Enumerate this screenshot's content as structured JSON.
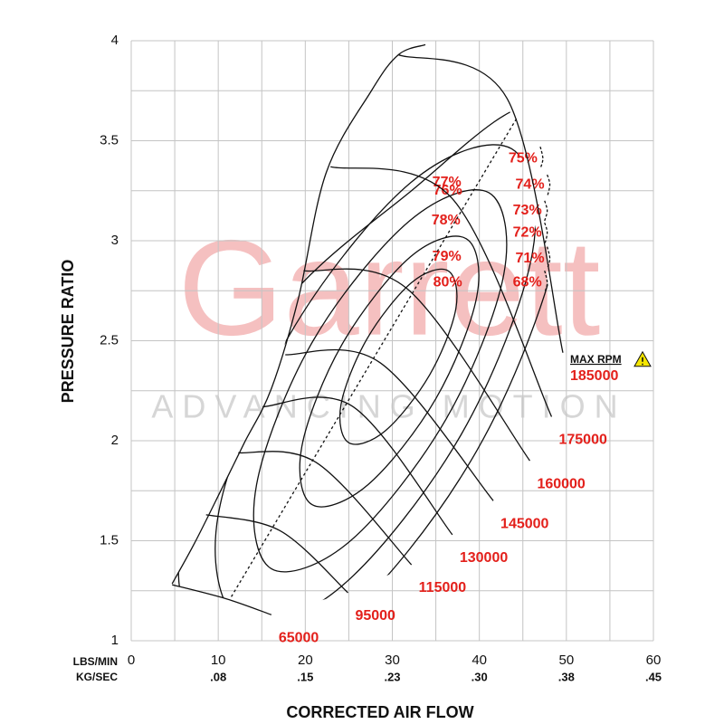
{
  "chart_data": {
    "type": "compressor_map",
    "x_label": "CORRECTED AIR FLOW",
    "y_label": "PRESSURE RATIO",
    "x_unit": "LBS/MIN",
    "x2_unit": "KG/SEC",
    "watermark": {
      "brand": "Garrett",
      "tagline": "ADVANCING MOTION"
    },
    "max_rpm_label": "MAX RPM",
    "xlim": [
      0,
      60
    ],
    "ylim": [
      1,
      4
    ],
    "xticks": [
      0,
      10,
      20,
      30,
      40,
      50,
      60
    ],
    "x2ticks": [
      {
        "value": 10,
        "label": ".08"
      },
      {
        "value": 20,
        "label": ".15"
      },
      {
        "value": 30,
        "label": ".23"
      },
      {
        "value": 40,
        "label": ".30"
      },
      {
        "value": 50,
        "label": ".38"
      },
      {
        "value": 60,
        "label": ".45"
      }
    ],
    "yticks": [
      1,
      1.5,
      2,
      2.5,
      3,
      3.5,
      4
    ],
    "xgrid": [
      5,
      15,
      25,
      35,
      45,
      55
    ],
    "ygrid": [
      1.25,
      1.75,
      2.25,
      2.75,
      3.25,
      3.75
    ],
    "line_color": "#111111",
    "label_color": "#e3201b",
    "surge_line": {
      "x": [
        4.7,
        7.3,
        10.4,
        13,
        16.1,
        19.2,
        22.4,
        27.6,
        30.7,
        33.8
      ],
      "y": [
        1.285,
        1.49,
        1.76,
        1.99,
        2.26,
        2.71,
        3.34,
        3.75,
        3.93,
        3.98
      ]
    },
    "peak_line": {
      "x": [
        11.5,
        44.4
      ],
      "y": [
        1.22,
        3.62
      ]
    },
    "speed_lines": [
      {
        "name": "65000",
        "x": [
          4.7,
          10.9,
          16.1
        ],
        "y": [
          1.28,
          1.21,
          1.13
        ]
      },
      {
        "name": "95000",
        "x": [
          8.6,
          17.1,
          24.9
        ],
        "y": [
          1.63,
          1.55,
          1.24
        ]
      },
      {
        "name": "115000",
        "x": [
          12.3,
          21.3,
          32.2
        ],
        "y": [
          1.94,
          1.89,
          1.38
        ]
      },
      {
        "name": "130000",
        "x": [
          15.1,
          25.5,
          36.9
        ],
        "y": [
          2.17,
          2.17,
          1.53
        ]
      },
      {
        "name": "145000",
        "x": [
          17.7,
          28.6,
          41.6
        ],
        "y": [
          2.43,
          2.39,
          1.7
        ]
      },
      {
        "name": "160000",
        "x": [
          19.8,
          31.7,
          45.8
        ],
        "y": [
          2.85,
          2.76,
          1.9
        ]
      },
      {
        "name": "175000",
        "x": [
          22.9,
          36.9,
          48.3
        ],
        "y": [
          3.37,
          3.21,
          2.12
        ]
      },
      {
        "name": "185000",
        "x": [
          30.7,
          43.2,
          49.6
        ],
        "y": [
          3.93,
          3.71,
          2.44
        ]
      }
    ],
    "islands": [
      {
        "name": "80%",
        "x": [
          36.4,
          37.3,
          34.3,
          29.2,
          25.0,
          24.1,
          27.1,
          32.2
        ],
        "y": [
          2.85,
          2.66,
          2.33,
          2.05,
          1.99,
          2.18,
          2.51,
          2.79
        ]
      },
      {
        "name": "79%",
        "x": [
          38.5,
          39.7,
          35.0,
          27.2,
          20.8,
          19.6,
          24.2,
          32.1
        ],
        "y": [
          3.01,
          2.72,
          2.21,
          1.78,
          1.68,
          1.97,
          2.48,
          2.92
        ]
      },
      {
        "name": "78%",
        "x": [
          41.1,
          42.8,
          36.2,
          25.2,
          16.1,
          14.4,
          20.9,
          32.0
        ],
        "y": [
          3.24,
          2.83,
          2.11,
          1.5,
          1.36,
          1.78,
          2.5,
          3.1
        ]
      },
      {
        "name": "77%",
        "x": [
          43.7,
          46.1,
          37.9,
          24.1,
          12.5,
          10.0,
          18.2,
          32.1
        ],
        "y": [
          3.46,
          2.94,
          2.03,
          1.27,
          1.1,
          1.63,
          2.53,
          3.29
        ]
      },
      {
        "name": "76%",
        "x": [
          46.3,
          49.3,
          39.7,
          23.5,
          9.5,
          5.7,
          15.4,
          32.2
        ],
        "y": [
          3.67,
          3.04,
          1.95,
          1.08,
          1.0,
          1.48,
          2.56,
          3.25
        ]
      }
    ],
    "arcs": [
      {
        "name": "75%",
        "x": [
          47.0,
          47.3,
          47.0
        ],
        "y": [
          3.47,
          3.41,
          3.36
        ]
      },
      {
        "name": "74%",
        "x": [
          47.8,
          48.1,
          47.8
        ],
        "y": [
          3.33,
          3.28,
          3.22
        ]
      },
      {
        "name": "73%",
        "x": [
          47.5,
          47.8,
          47.5
        ],
        "y": [
          3.2,
          3.15,
          3.1
        ]
      },
      {
        "name": "72%",
        "x": [
          47.5,
          47.8,
          47.5
        ],
        "y": [
          3.09,
          3.04,
          2.98
        ]
      },
      {
        "name": "71%",
        "x": [
          47.8,
          48.1,
          47.8
        ],
        "y": [
          2.97,
          2.91,
          2.86
        ]
      },
      {
        "name": "68%",
        "x": [
          47.5,
          47.8,
          47.5
        ],
        "y": [
          2.85,
          2.79,
          2.74
        ]
      }
    ]
  }
}
